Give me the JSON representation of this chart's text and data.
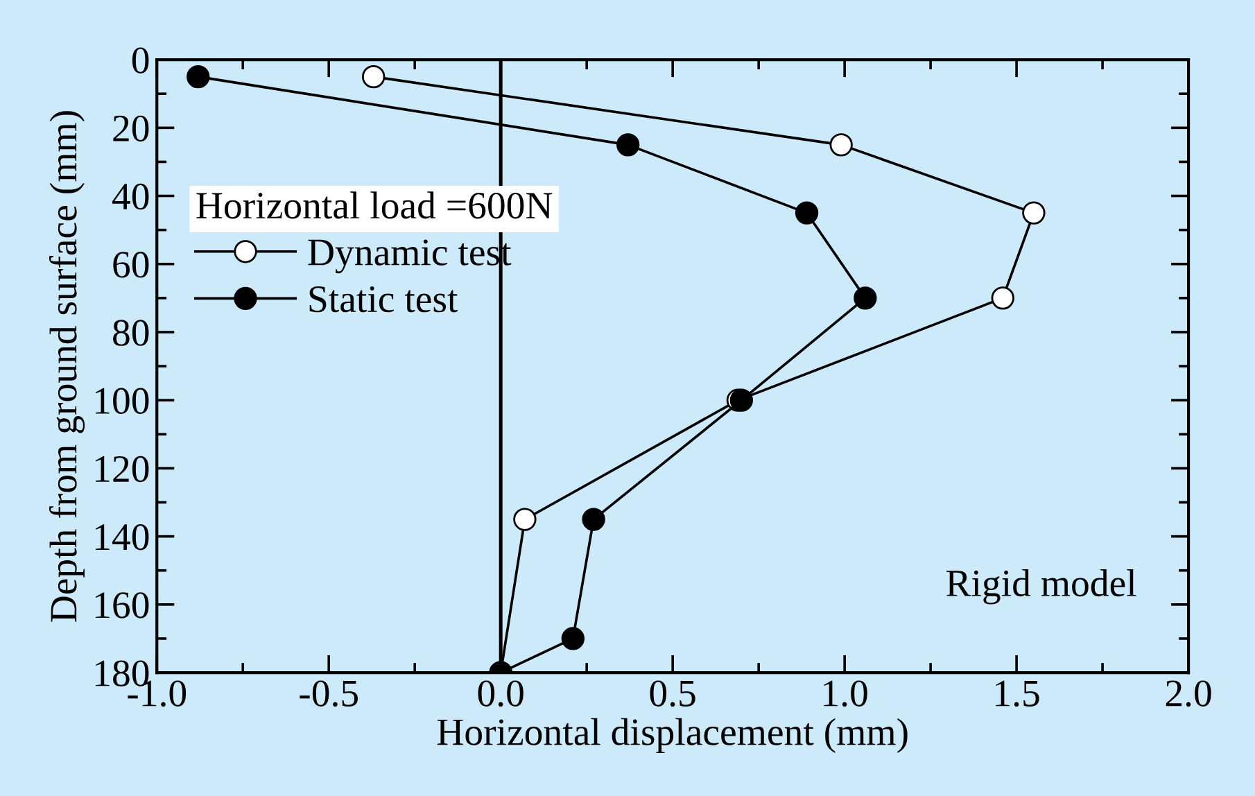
{
  "chart_data": {
    "type": "line",
    "xlabel": "Horizontal displacement (mm)",
    "ylabel": "Depth from ground surface (mm)",
    "legend_title": "Horizontal load =600N",
    "legend": "center left",
    "grid": false,
    "line_style": "solid",
    "xlim": [
      -1.0,
      2.0
    ],
    "xticks": [
      {
        "value": -1.0,
        "label": "-1.0"
      },
      {
        "value": -0.5,
        "label": "-0.5"
      },
      {
        "value": 0.0,
        "label": "0.0"
      },
      {
        "value": 0.5,
        "label": "0.5"
      },
      {
        "value": 1.0,
        "label": "1.0"
      },
      {
        "value": 1.5,
        "label": "1.5"
      },
      {
        "value": 2.0,
        "label": "2.0"
      }
    ],
    "ylim": [
      180,
      0
    ],
    "yticks": [
      0,
      20,
      40,
      60,
      80,
      100,
      120,
      140,
      160,
      180
    ],
    "series": [
      {
        "name": "Dynamic test",
        "color": "#ffffff",
        "marker": "circle",
        "x": [
          -0.37,
          0.99,
          1.55,
          1.46,
          0.69,
          0.07,
          0.0
        ],
        "values": [
          5,
          25,
          45,
          70,
          100,
          135,
          180
        ]
      },
      {
        "name": "Static test",
        "color": "#000000",
        "marker": "circle",
        "x": [
          -0.88,
          0.37,
          0.89,
          1.06,
          0.7,
          0.27,
          0.21,
          0.0
        ],
        "values": [
          5,
          25,
          45,
          70,
          100,
          135,
          170,
          180
        ]
      }
    ],
    "ref_lines": [
      {
        "axis": "x",
        "value": 0.0,
        "color": "#000000",
        "line_style": "solid"
      }
    ],
    "annotations": [
      "Rigid model"
    ]
  }
}
